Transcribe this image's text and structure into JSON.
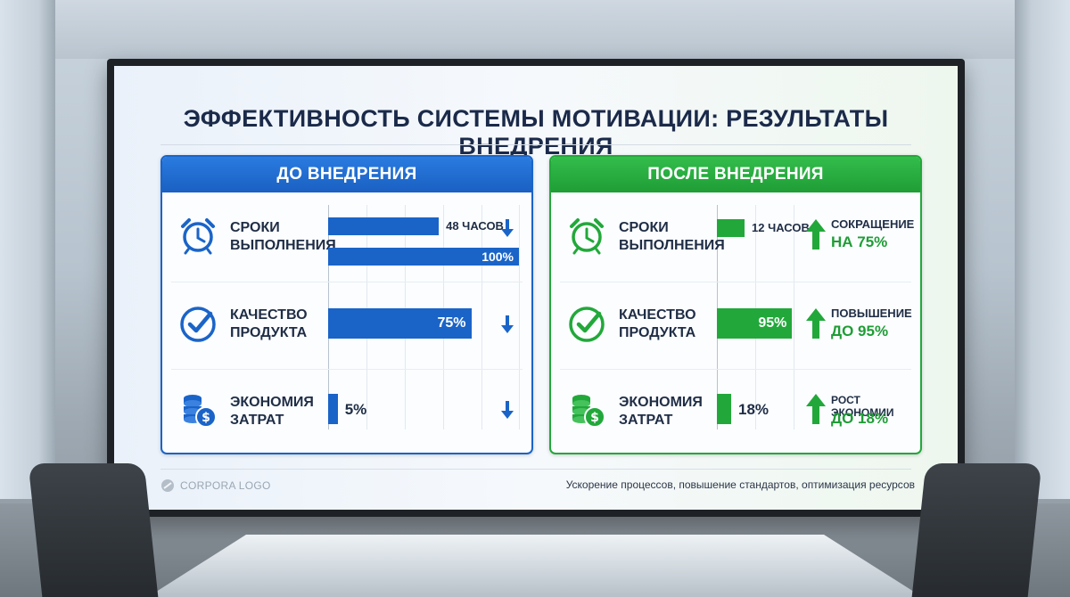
{
  "title": "ЭФФЕКТИВНОСТЬ СИСТЕМЫ МОТИВАЦИИ: РЕЗУЛЬТАТЫ ВНЕДРЕНИЯ",
  "colors": {
    "before": "#1a64c8",
    "after": "#22a83a",
    "text": "#1f2d45"
  },
  "chart_data": [
    {
      "type": "bar",
      "title": "ДО ВНЕДРЕНИЯ",
      "metrics": [
        {
          "label_line1": "СРОКИ",
          "label_line2": "ВЫПОЛНЕНИЯ",
          "icon": "alarm-clock-icon",
          "bars": [
            {
              "value": 48,
              "label": "48 ЧАСОВ"
            },
            {
              "value": 100,
              "label": "100%"
            }
          ]
        },
        {
          "label_line1": "КАЧЕСТВО",
          "label_line2": "ПРОДУКТА",
          "icon": "check-circle-icon",
          "bars": [
            {
              "value": 75,
              "label": "75%"
            }
          ]
        },
        {
          "label_line1": "ЭКОНОМИЯ",
          "label_line2": "ЗАТРАТ",
          "icon": "coins-icon",
          "bars": [
            {
              "value": 5,
              "label": "5%"
            }
          ]
        }
      ],
      "trend": "down"
    },
    {
      "type": "bar",
      "title": "ПОСЛЕ ВНЕДРЕНИЯ",
      "metrics": [
        {
          "label_line1": "СРОКИ",
          "label_line2": "ВЫПОЛНЕНИЯ",
          "icon": "alarm-clock-icon",
          "bars": [
            {
              "value": 12,
              "label": "12 ЧАСОВ"
            }
          ],
          "change_line1": "СОКРАЩЕНИЕ",
          "change_line2": "НА 75%"
        },
        {
          "label_line1": "КАЧЕСТВО",
          "label_line2": "ПРОДУКТА",
          "icon": "check-circle-icon",
          "bars": [
            {
              "value": 95,
              "label": "95%"
            }
          ],
          "change_line1": "ПОВЫШЕНИЕ",
          "change_line2": "ДО 95%"
        },
        {
          "label_line1": "ЭКОНОМИЯ",
          "label_line2": "ЗАТРАТ",
          "icon": "coins-icon",
          "bars": [
            {
              "value": 18,
              "label": "18%"
            }
          ],
          "change_line1": "РОСТ ЭКОНОМИИ",
          "change_line2": "ДО 18%"
        }
      ],
      "trend": "up"
    }
  ],
  "footer": {
    "logo_text": "CORPORA LOGO",
    "tagline": "Ускорение процессов, повышение стандартов, оптимизация ресурсов"
  }
}
